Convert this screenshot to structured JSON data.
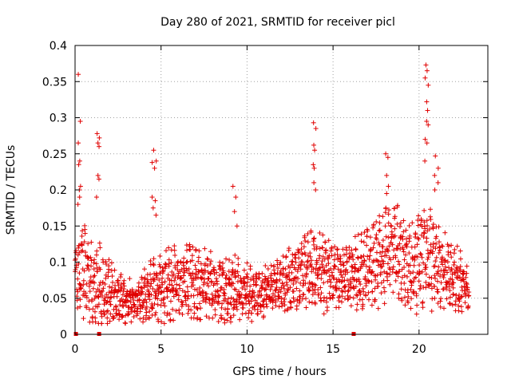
{
  "chart_data": {
    "type": "scatter",
    "title": "Day 280 of 2021, SRMTID for receiver picl",
    "xlabel": "GPS time / hours",
    "ylabel": "SRMTID / TECUs",
    "xlim": [
      0,
      24
    ],
    "ylim": [
      0,
      0.4
    ],
    "xticks": [
      0,
      5,
      10,
      15,
      20
    ],
    "xtick_labels": [
      "0",
      "5",
      "10",
      "15",
      "20"
    ],
    "yticks": [
      0,
      0.05,
      0.1,
      0.15,
      0.2,
      0.25,
      0.3,
      0.35,
      0.4
    ],
    "ytick_labels": [
      "0",
      "0.05",
      "0.1",
      "0.15",
      "0.2",
      "0.25",
      "0.3",
      "0.35",
      "0.4"
    ],
    "grid": true,
    "marker": "+",
    "color": "#e00000",
    "zero_markers_x": [
      0.05,
      1.4,
      16.2
    ],
    "trend": [
      {
        "x": 0.0,
        "base": 0.08,
        "spread": 0.05
      },
      {
        "x": 0.5,
        "base": 0.09,
        "spread": 0.08
      },
      {
        "x": 1.0,
        "base": 0.07,
        "spread": 0.06
      },
      {
        "x": 1.5,
        "base": 0.06,
        "spread": 0.07
      },
      {
        "x": 2.5,
        "base": 0.05,
        "spread": 0.04
      },
      {
        "x": 3.5,
        "base": 0.045,
        "spread": 0.03
      },
      {
        "x": 4.5,
        "base": 0.06,
        "spread": 0.05
      },
      {
        "x": 5.5,
        "base": 0.07,
        "spread": 0.06
      },
      {
        "x": 6.5,
        "base": 0.075,
        "spread": 0.06
      },
      {
        "x": 7.5,
        "base": 0.07,
        "spread": 0.06
      },
      {
        "x": 8.5,
        "base": 0.06,
        "spread": 0.05
      },
      {
        "x": 9.5,
        "base": 0.065,
        "spread": 0.05
      },
      {
        "x": 10.5,
        "base": 0.055,
        "spread": 0.04
      },
      {
        "x": 11.5,
        "base": 0.065,
        "spread": 0.04
      },
      {
        "x": 12.5,
        "base": 0.075,
        "spread": 0.05
      },
      {
        "x": 13.5,
        "base": 0.09,
        "spread": 0.06
      },
      {
        "x": 14.5,
        "base": 0.085,
        "spread": 0.06
      },
      {
        "x": 15.5,
        "base": 0.08,
        "spread": 0.05
      },
      {
        "x": 16.5,
        "base": 0.085,
        "spread": 0.06
      },
      {
        "x": 17.5,
        "base": 0.1,
        "spread": 0.07
      },
      {
        "x": 18.5,
        "base": 0.12,
        "spread": 0.08
      },
      {
        "x": 19.5,
        "base": 0.09,
        "spread": 0.07
      },
      {
        "x": 20.5,
        "base": 0.11,
        "spread": 0.09
      },
      {
        "x": 21.5,
        "base": 0.09,
        "spread": 0.06
      },
      {
        "x": 22.5,
        "base": 0.07,
        "spread": 0.05
      },
      {
        "x": 22.9,
        "base": 0.06,
        "spread": 0.03
      }
    ],
    "sample_step_hours": 0.0125,
    "burst_peaks": [
      {
        "x": 0.25,
        "values": [
          0.36,
          0.295,
          0.265,
          0.24,
          0.235,
          0.205,
          0.2,
          0.19,
          0.18
        ]
      },
      {
        "x": 1.35,
        "values": [
          0.278,
          0.272,
          0.265,
          0.26,
          0.22,
          0.215,
          0.19
        ]
      },
      {
        "x": 4.6,
        "values": [
          0.255,
          0.24,
          0.238,
          0.23,
          0.19,
          0.185,
          0.175,
          0.165
        ]
      },
      {
        "x": 9.3,
        "values": [
          0.205,
          0.19,
          0.17,
          0.15
        ]
      },
      {
        "x": 13.9,
        "values": [
          0.293,
          0.285,
          0.262,
          0.255,
          0.235,
          0.23,
          0.21,
          0.2
        ]
      },
      {
        "x": 18.15,
        "values": [
          0.25,
          0.245,
          0.22,
          0.205,
          0.195
        ]
      },
      {
        "x": 20.45,
        "values": [
          0.373,
          0.365,
          0.355,
          0.345,
          0.322,
          0.31,
          0.295,
          0.29,
          0.27,
          0.265,
          0.24
        ]
      },
      {
        "x": 21.0,
        "values": [
          0.247,
          0.23,
          0.22,
          0.21,
          0.2
        ]
      }
    ]
  }
}
